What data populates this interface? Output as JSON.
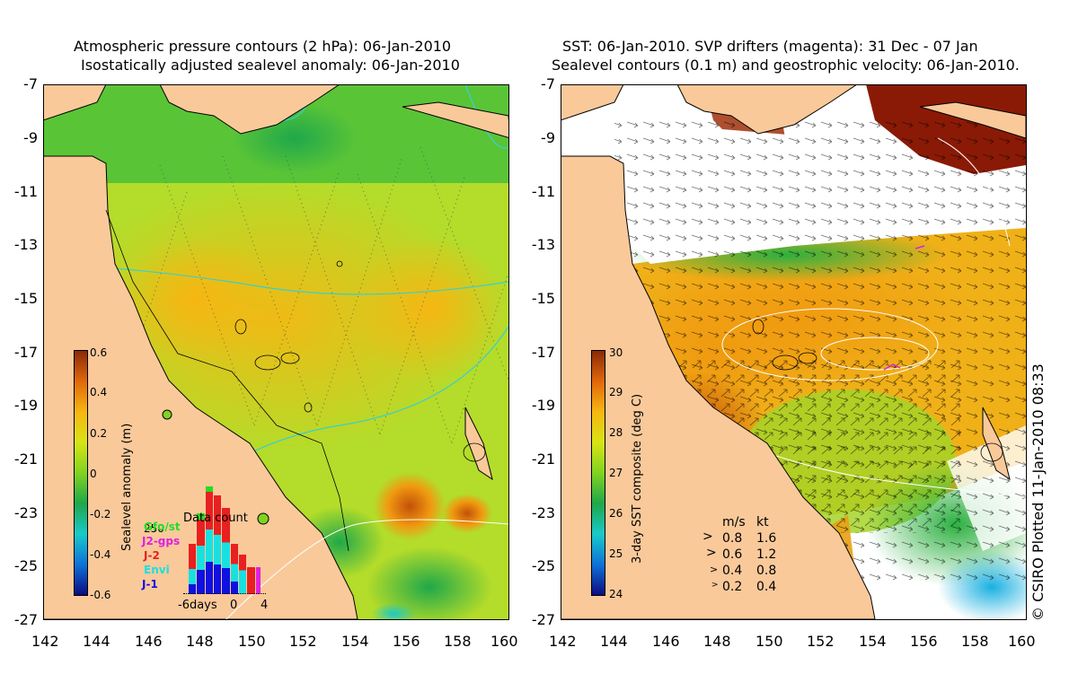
{
  "left_panel": {
    "title_line1": "Atmospheric pressure contours (2 hPa): 06-Jan-2010",
    "title_line2": "Isostatically adjusted sealevel anomaly: 06-Jan-2010",
    "colorbar": {
      "label": "Sealevel anomaly (m)",
      "ticks": [
        "0.6",
        "0.4",
        "0.2",
        "0",
        "-0.2",
        "-0.4",
        "-0.6"
      ]
    },
    "inset": {
      "title": "Data count",
      "y_tick": "250",
      "legend": [
        "Gfo/st",
        "J2-gps",
        "J-2",
        "Envi",
        "J-1"
      ],
      "x_ticks": [
        "-6days",
        "0",
        "4"
      ]
    }
  },
  "right_panel": {
    "title_line1": "SST: 06-Jan-2010. SVP drifters (magenta): 31 Dec - 07 Jan",
    "title_line2": "Sealevel contours (0.1 m) and geostrophic velocity: 06-Jan-2010.",
    "colorbar": {
      "label": "3-day SST composite (deg C)",
      "ticks": [
        "30",
        "29",
        "28",
        "27",
        "26",
        "25",
        "24"
      ]
    },
    "speed_legend": {
      "header_ms": "m/s",
      "header_kt": "kt",
      "rows": [
        {
          "ms": "0.8",
          "kt": "1.6"
        },
        {
          "ms": "0.6",
          "kt": "1.2"
        },
        {
          "ms": "0.4",
          "kt": "0.8"
        },
        {
          "ms": "0.2",
          "kt": "0.4"
        }
      ]
    }
  },
  "axes": {
    "y_ticks": [
      "-7",
      "-9",
      "-11",
      "-13",
      "-15",
      "-17",
      "-19",
      "-21",
      "-23",
      "-25",
      "-27"
    ],
    "x_ticks": [
      "142",
      "144",
      "146",
      "148",
      "150",
      "152",
      "154",
      "156",
      "158",
      "160"
    ]
  },
  "credit": "© CSIRO Plotted 11-Jan-2010 08:33",
  "colors": {
    "land": "#f9c99a",
    "sla_ramp": [
      "#0b0b80",
      "#0e72d8",
      "#19c9c9",
      "#1fa84a",
      "#7fd420",
      "#d8e414",
      "#f7b612",
      "#e0680c",
      "#8a2a06"
    ],
    "sst_ramp": [
      "#0b0b80",
      "#0e72d8",
      "#19c9c9",
      "#1fa84a",
      "#7fd420",
      "#d8e414",
      "#f7b612",
      "#e0680c",
      "#8a2a06"
    ],
    "coast": "#000000",
    "white": "#ffffff"
  }
}
